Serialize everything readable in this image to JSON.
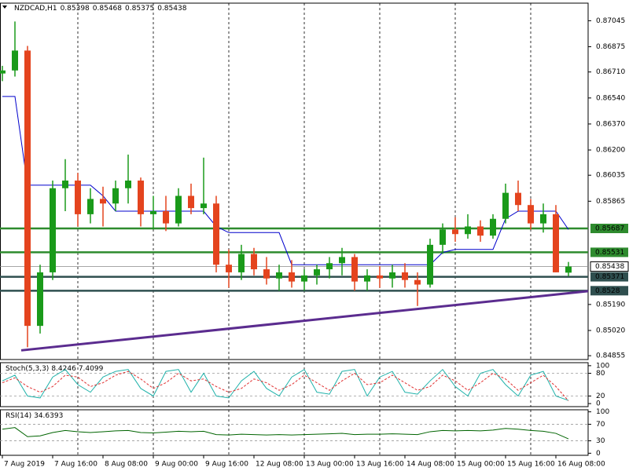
{
  "chart_data": [
    {
      "type": "candlestick",
      "title": "NZDCAD,H1",
      "x": [
        0,
        4,
        8,
        12,
        16,
        20,
        24,
        28,
        32,
        36,
        40,
        44,
        48,
        52,
        56,
        60,
        64,
        68,
        72,
        76,
        80,
        84,
        88,
        92,
        96,
        100,
        104,
        108,
        112,
        116,
        120,
        124,
        128,
        132,
        136,
        140,
        144,
        148,
        152,
        156,
        160,
        164,
        168,
        172,
        176,
        180
      ],
      "open": [
        0.867,
        0.8672,
        0.8685,
        0.8505,
        0.854,
        0.8595,
        0.86,
        0.8578,
        0.8588,
        0.8585,
        0.8595,
        0.86,
        0.8578,
        0.858,
        0.8572,
        0.859,
        0.8582,
        0.8585,
        0.8545,
        0.854,
        0.8552,
        0.8542,
        0.8536,
        0.854,
        0.8534,
        0.8538,
        0.8542,
        0.8546,
        0.855,
        0.8534,
        0.8538,
        0.8536,
        0.854,
        0.8535,
        0.8532,
        0.8558,
        0.8568,
        0.8565,
        0.857,
        0.8564,
        0.8575,
        0.8592,
        0.8584,
        0.8572,
        0.8578,
        0.85398
      ],
      "high": [
        0.8675,
        0.8704,
        0.8688,
        0.8545,
        0.86,
        0.8614,
        0.8605,
        0.8595,
        0.8596,
        0.86,
        0.8617,
        0.8602,
        0.859,
        0.859,
        0.8595,
        0.8598,
        0.8615,
        0.859,
        0.8555,
        0.8558,
        0.8556,
        0.855,
        0.8545,
        0.8548,
        0.8542,
        0.8545,
        0.855,
        0.8556,
        0.8552,
        0.8542,
        0.8544,
        0.8545,
        0.8546,
        0.854,
        0.8562,
        0.8572,
        0.8576,
        0.8578,
        0.8574,
        0.8578,
        0.8598,
        0.86,
        0.8588,
        0.8585,
        0.8584,
        0.85468
      ],
      "low": [
        0.8665,
        0.8668,
        0.8491,
        0.85,
        0.8535,
        0.858,
        0.857,
        0.8572,
        0.857,
        0.858,
        0.8585,
        0.857,
        0.8568,
        0.8567,
        0.857,
        0.8578,
        0.8578,
        0.854,
        0.853,
        0.8535,
        0.8538,
        0.8532,
        0.8528,
        0.853,
        0.8528,
        0.8532,
        0.8536,
        0.8538,
        0.8528,
        0.8528,
        0.853,
        0.853,
        0.853,
        0.8518,
        0.853,
        0.8552,
        0.856,
        0.8562,
        0.856,
        0.8562,
        0.8572,
        0.858,
        0.8568,
        0.8566,
        0.854,
        0.85375
      ],
      "close": [
        0.8672,
        0.8685,
        0.8505,
        0.854,
        0.8595,
        0.86,
        0.8578,
        0.8588,
        0.8585,
        0.8595,
        0.86,
        0.8578,
        0.858,
        0.8572,
        0.859,
        0.8582,
        0.8585,
        0.8545,
        0.854,
        0.8552,
        0.8542,
        0.8536,
        0.854,
        0.8534,
        0.8538,
        0.8542,
        0.8546,
        0.855,
        0.8534,
        0.8538,
        0.8536,
        0.854,
        0.8535,
        0.8532,
        0.8558,
        0.8568,
        0.8565,
        0.857,
        0.8564,
        0.8575,
        0.8592,
        0.8584,
        0.8572,
        0.8578,
        0.854,
        0.85438
      ],
      "up_color": "#1a9a1a",
      "down_color": "#e4441e",
      "kijun": {
        "color": "#0000cc",
        "values": [
          0.8655,
          0.8655,
          0.8597,
          0.8597,
          0.8597,
          0.8597,
          0.8597,
          0.8597,
          0.859,
          0.858,
          0.858,
          0.858,
          0.858,
          0.858,
          0.858,
          0.858,
          0.858,
          0.857,
          0.8566,
          0.8566,
          0.8566,
          0.8566,
          0.8566,
          0.8545,
          0.8545,
          0.8545,
          0.8545,
          0.8545,
          0.8545,
          0.8545,
          0.8545,
          0.8545,
          0.8545,
          0.8545,
          0.8545,
          0.8553,
          0.8555,
          0.8555,
          0.8555,
          0.8555,
          0.8575,
          0.858,
          0.858,
          0.858,
          0.858,
          0.8568
        ]
      },
      "levels": [
        {
          "value": 0.85687,
          "color": "#2e8b2e"
        },
        {
          "value": 0.85531,
          "color": "#2e8b2e"
        },
        {
          "value": 0.85371,
          "color": "#2f4f4f"
        },
        {
          "value": 0.8528,
          "color": "#2f4f4f"
        }
      ],
      "trendline": {
        "x": [
          6,
          186.25
        ],
        "y": [
          0.8489,
          0.85277
        ],
        "color": "#5b2c8f"
      },
      "xlim": [
        -0.75,
        186.25
      ],
      "xticks": [
        {
          "value": 0,
          "label": "7 Aug 2019"
        },
        {
          "value": 16,
          "label": "7 Aug 16:00"
        },
        {
          "value": 32,
          "label": "8 Aug 08:00"
        },
        {
          "value": 48,
          "label": "9 Aug 00:00"
        },
        {
          "value": 64,
          "label": "9 Aug 16:00"
        },
        {
          "value": 80,
          "label": "12 Aug 08:00"
        },
        {
          "value": 96,
          "label": "13 Aug 00:00"
        },
        {
          "value": 112,
          "label": "13 Aug 16:00"
        },
        {
          "value": 128,
          "label": "14 Aug 08:00"
        },
        {
          "value": 144,
          "label": "15 Aug 00:00"
        },
        {
          "value": 160,
          "label": "15 Aug 16:00"
        },
        {
          "value": 176,
          "label": "16 Aug 08:00"
        }
      ],
      "xgrid": [
        24,
        48,
        72,
        96,
        120,
        144,
        168
      ],
      "ylim": [
        0.8483,
        0.8716
      ],
      "yticks": [
        0.87045,
        0.86875,
        {
          "value": 0.8671,
          "label": "0.86710"
        },
        {
          "value": 0.8654,
          "label": "0.86540"
        },
        {
          "value": 0.8637,
          "label": "0.86370"
        },
        {
          "value": 0.862,
          "label": "0.86200"
        },
        0.86035,
        0.85865,
        {
          "value": 0.8519,
          "label": "0.85190"
        },
        {
          "value": 0.8502,
          "label": "0.85020"
        },
        0.84855
      ]
    },
    {
      "type": "line",
      "title": "Stoch(5,3,3)",
      "series": [
        {
          "color": "#20b2aa",
          "dash": false,
          "values": [
            60,
            75,
            20,
            15,
            70,
            90,
            50,
            30,
            70,
            85,
            90,
            40,
            20,
            85,
            90,
            30,
            80,
            20,
            15,
            60,
            85,
            40,
            20,
            70,
            90,
            30,
            25,
            85,
            90,
            20,
            70,
            85,
            30,
            25,
            60,
            90,
            45,
            20,
            80,
            90,
            50,
            20,
            75,
            85,
            20,
            8.4246
          ]
        },
        {
          "color": "#e03030",
          "dash": true,
          "values": [
            55,
            68,
            45,
            30,
            45,
            75,
            70,
            45,
            55,
            75,
            85,
            65,
            40,
            55,
            80,
            60,
            65,
            45,
            30,
            40,
            65,
            55,
            35,
            50,
            75,
            55,
            35,
            60,
            80,
            50,
            55,
            75,
            55,
            35,
            45,
            75,
            60,
            35,
            55,
            80,
            65,
            35,
            55,
            75,
            45,
            7.4099
          ]
        }
      ],
      "levels": [
        20,
        80
      ],
      "ylim": [
        -8,
        108
      ],
      "yticks": [
        0,
        20,
        80,
        100
      ]
    },
    {
      "type": "line",
      "title": "RSI(14)",
      "series": [
        {
          "color": "#006400",
          "dash": false,
          "values": [
            58,
            62,
            40,
            42,
            50,
            55,
            52,
            50,
            52,
            54,
            55,
            50,
            49,
            51,
            53,
            52,
            53,
            45,
            44,
            46,
            45,
            44,
            45,
            44,
            45,
            46,
            47,
            48,
            45,
            46,
            46,
            47,
            46,
            45,
            52,
            55,
            54,
            55,
            54,
            56,
            60,
            58,
            55,
            53,
            48,
            34.6393
          ]
        }
      ],
      "levels": [
        30,
        70
      ],
      "ylim": [
        -5,
        105
      ],
      "yticks": [
        0,
        30,
        70,
        100
      ]
    }
  ]
}
